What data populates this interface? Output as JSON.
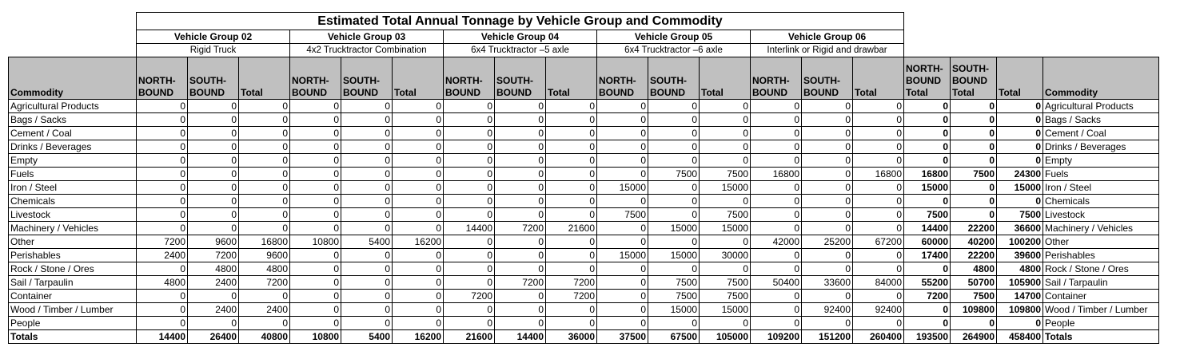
{
  "title": "Estimated Total Annual Tonnage by Vehicle Group and Commodity",
  "groups": [
    {
      "name": "Vehicle Group 02",
      "type": "Rigid Truck"
    },
    {
      "name": "Vehicle Group 03",
      "type": "4x2 Trucktractor Combination"
    },
    {
      "name": "Vehicle Group 04",
      "type": "6x4 Trucktractor –5 axle"
    },
    {
      "name": "Vehicle Group 05",
      "type": "6x4 Trucktractor –6 axle"
    },
    {
      "name": "Vehicle Group 06",
      "type": "Interlink or Rigid and drawbar"
    }
  ],
  "headers": {
    "commodity": "Commodity",
    "north": "NORTH- BOUND",
    "south": "SOUTH- BOUND",
    "total": "Total",
    "north_total": "NORTH- BOUND Total",
    "south_total": "SOUTH- BOUND Total",
    "grand_total": "Total",
    "commodity_right": "Commodity"
  },
  "rows": [
    {
      "commodity": "Agricultural Products",
      "values": [
        0,
        0,
        0,
        0,
        0,
        0,
        0,
        0,
        0,
        0,
        0,
        0,
        0,
        0,
        0
      ],
      "totals": [
        0,
        0,
        0
      ]
    },
    {
      "commodity": "Bags / Sacks",
      "values": [
        0,
        0,
        0,
        0,
        0,
        0,
        0,
        0,
        0,
        0,
        0,
        0,
        0,
        0,
        0
      ],
      "totals": [
        0,
        0,
        0
      ]
    },
    {
      "commodity": "Cement / Coal",
      "values": [
        0,
        0,
        0,
        0,
        0,
        0,
        0,
        0,
        0,
        0,
        0,
        0,
        0,
        0,
        0
      ],
      "totals": [
        0,
        0,
        0
      ]
    },
    {
      "commodity": "Drinks / Beverages",
      "values": [
        0,
        0,
        0,
        0,
        0,
        0,
        0,
        0,
        0,
        0,
        0,
        0,
        0,
        0,
        0
      ],
      "totals": [
        0,
        0,
        0
      ]
    },
    {
      "commodity": "Empty",
      "values": [
        0,
        0,
        0,
        0,
        0,
        0,
        0,
        0,
        0,
        0,
        0,
        0,
        0,
        0,
        0
      ],
      "totals": [
        0,
        0,
        0
      ]
    },
    {
      "commodity": "Fuels",
      "values": [
        0,
        0,
        0,
        0,
        0,
        0,
        0,
        0,
        0,
        0,
        7500,
        7500,
        16800,
        0,
        16800
      ],
      "totals": [
        16800,
        7500,
        24300
      ]
    },
    {
      "commodity": "Iron / Steel",
      "values": [
        0,
        0,
        0,
        0,
        0,
        0,
        0,
        0,
        0,
        15000,
        0,
        15000,
        0,
        0,
        0
      ],
      "totals": [
        15000,
        0,
        15000
      ]
    },
    {
      "commodity": "Chemicals",
      "values": [
        0,
        0,
        0,
        0,
        0,
        0,
        0,
        0,
        0,
        0,
        0,
        0,
        0,
        0,
        0
      ],
      "totals": [
        0,
        0,
        0
      ]
    },
    {
      "commodity": "Livestock",
      "values": [
        0,
        0,
        0,
        0,
        0,
        0,
        0,
        0,
        0,
        7500,
        0,
        7500,
        0,
        0,
        0
      ],
      "totals": [
        7500,
        0,
        7500
      ]
    },
    {
      "commodity": "Machinery / Vehicles",
      "values": [
        0,
        0,
        0,
        0,
        0,
        0,
        14400,
        7200,
        21600,
        0,
        15000,
        15000,
        0,
        0,
        0
      ],
      "totals": [
        14400,
        22200,
        36600
      ]
    },
    {
      "commodity": "Other",
      "values": [
        7200,
        9600,
        16800,
        10800,
        5400,
        16200,
        0,
        0,
        0,
        0,
        0,
        0,
        42000,
        25200,
        67200
      ],
      "totals": [
        60000,
        40200,
        100200
      ]
    },
    {
      "commodity": "Perishables",
      "values": [
        2400,
        7200,
        9600,
        0,
        0,
        0,
        0,
        0,
        0,
        15000,
        15000,
        30000,
        0,
        0,
        0
      ],
      "totals": [
        17400,
        22200,
        39600
      ]
    },
    {
      "commodity": "Rock / Stone / Ores",
      "values": [
        0,
        4800,
        4800,
        0,
        0,
        0,
        0,
        0,
        0,
        0,
        0,
        0,
        0,
        0,
        0
      ],
      "totals": [
        0,
        4800,
        4800
      ]
    },
    {
      "commodity": "Sail / Tarpaulin",
      "values": [
        4800,
        2400,
        7200,
        0,
        0,
        0,
        0,
        7200,
        7200,
        0,
        7500,
        7500,
        50400,
        33600,
        84000
      ],
      "totals": [
        55200,
        50700,
        105900
      ]
    },
    {
      "commodity": "Container",
      "values": [
        0,
        0,
        0,
        0,
        0,
        0,
        7200,
        0,
        7200,
        0,
        7500,
        7500,
        0,
        0,
        0
      ],
      "totals": [
        7200,
        7500,
        14700
      ]
    },
    {
      "commodity": "Wood / Timber / Lumber",
      "values": [
        0,
        2400,
        2400,
        0,
        0,
        0,
        0,
        0,
        0,
        0,
        15000,
        15000,
        0,
        92400,
        92400
      ],
      "totals": [
        0,
        109800,
        109800
      ]
    },
    {
      "commodity": "People",
      "values": [
        0,
        0,
        0,
        0,
        0,
        0,
        0,
        0,
        0,
        0,
        0,
        0,
        0,
        0,
        0
      ],
      "totals": [
        0,
        0,
        0
      ]
    },
    {
      "commodity": "Totals",
      "values": [
        14400,
        26400,
        40800,
        10800,
        5400,
        16200,
        21600,
        14400,
        36000,
        37500,
        67500,
        105000,
        109200,
        151200,
        260400
      ],
      "totals": [
        193500,
        264900,
        458400
      ]
    }
  ]
}
